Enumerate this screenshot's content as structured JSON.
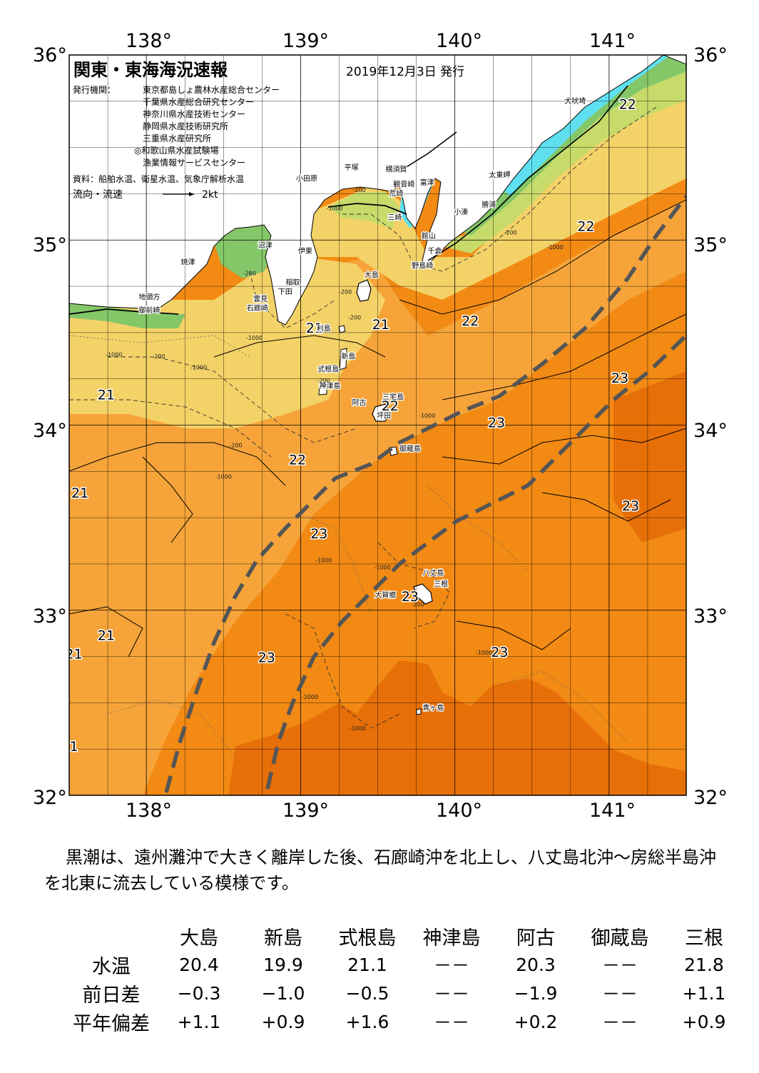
{
  "map": {
    "title": "関東・東海海況速報",
    "issue_date": "2019年12月3日 発行",
    "issuers_label": "発行機関：",
    "issuers": [
      "東京都島しょ農林水産総合センター",
      "千葉県水産総合研究センター",
      "神奈川県水産技術センター",
      "静岡県水産技術研究所",
      "三重県水産研究所",
      "◎和歌山県水産試験場",
      "漁業情報サービスセンター"
    ],
    "sources": "資料：船舶水温、衛星水温、気象庁解析水温",
    "flow_legend_label": "流向・流速",
    "flow_legend_value": "2kt",
    "lon_labels": [
      "138°",
      "139°",
      "140°",
      "141°"
    ],
    "lat_labels": [
      "36°",
      "35°",
      "34°",
      "33°",
      "32°"
    ],
    "temperature_labels": [
      {
        "text": "22",
        "lon": 141.12,
        "lat": 35.73
      },
      {
        "text": "22",
        "lon": 140.85,
        "lat": 35.07
      },
      {
        "text": "21",
        "lon": 139.09,
        "lat": 34.52
      },
      {
        "text": "21",
        "lon": 139.52,
        "lat": 34.54
      },
      {
        "text": "22",
        "lon": 140.1,
        "lat": 34.56
      },
      {
        "text": "21",
        "lon": 137.74,
        "lat": 34.16
      },
      {
        "text": "22",
        "lon": 139.58,
        "lat": 34.1
      },
      {
        "text": "23",
        "lon": 140.27,
        "lat": 34.01
      },
      {
        "text": "23",
        "lon": 141.07,
        "lat": 34.25
      },
      {
        "text": "22",
        "lon": 138.98,
        "lat": 33.81
      },
      {
        "text": "21",
        "lon": 137.57,
        "lat": 33.63
      },
      {
        "text": "23",
        "lon": 141.14,
        "lat": 33.56
      },
      {
        "text": "23",
        "lon": 139.12,
        "lat": 33.41
      },
      {
        "text": "23",
        "lon": 139.71,
        "lat": 33.07
      },
      {
        "text": "21",
        "lon": 137.74,
        "lat": 32.86
      },
      {
        "text": "21",
        "lon": 137.53,
        "lat": 32.76
      },
      {
        "text": "23",
        "lon": 140.29,
        "lat": 32.77
      },
      {
        "text": "23",
        "lon": 138.78,
        "lat": 32.74
      },
      {
        "text": "1",
        "lon": 137.53,
        "lat": 32.26
      }
    ],
    "place_names": [
      {
        "text": "犬吠埼",
        "lon": 140.78,
        "lat": 35.75
      },
      {
        "text": "太東岬",
        "lon": 140.29,
        "lat": 35.35
      },
      {
        "text": "勝浦",
        "lon": 140.22,
        "lat": 35.19
      },
      {
        "text": "小湊",
        "lon": 140.04,
        "lat": 35.15
      },
      {
        "text": "富津",
        "lon": 139.82,
        "lat": 35.31
      },
      {
        "text": "横須賀",
        "lon": 139.62,
        "lat": 35.38
      },
      {
        "text": "平塚",
        "lon": 139.33,
        "lat": 35.39
      },
      {
        "text": "小田原",
        "lon": 139.04,
        "lat": 35.33
      },
      {
        "text": "観音崎",
        "lon": 139.67,
        "lat": 35.3
      },
      {
        "text": "荒崎",
        "lon": 139.62,
        "lat": 35.25
      },
      {
        "text": "三崎",
        "lon": 139.61,
        "lat": 35.12
      },
      {
        "text": "館山",
        "lon": 139.83,
        "lat": 35.02
      },
      {
        "text": "千倉",
        "lon": 139.87,
        "lat": 34.94
      },
      {
        "text": "野島崎",
        "lon": 139.79,
        "lat": 34.86
      },
      {
        "text": "沼津",
        "lon": 138.77,
        "lat": 34.97
      },
      {
        "text": "伊東",
        "lon": 139.03,
        "lat": 34.94
      },
      {
        "text": "焼津",
        "lon": 138.27,
        "lat": 34.88
      },
      {
        "text": "大島",
        "lon": 139.46,
        "lat": 34.81
      },
      {
        "text": "稲取",
        "lon": 138.95,
        "lat": 34.77
      },
      {
        "text": "下田",
        "lon": 138.9,
        "lat": 34.72
      },
      {
        "text": "雲見",
        "lon": 138.74,
        "lat": 34.68
      },
      {
        "text": "石廊崎",
        "lon": 138.72,
        "lat": 34.63
      },
      {
        "text": "地頭方",
        "lon": 138.02,
        "lat": 34.69
      },
      {
        "text": "御前崎",
        "lon": 138.02,
        "lat": 34.62
      },
      {
        "text": "利島",
        "lon": 139.15,
        "lat": 34.52
      },
      {
        "text": "新島",
        "lon": 139.31,
        "lat": 34.37
      },
      {
        "text": "式根島",
        "lon": 139.18,
        "lat": 34.3
      },
      {
        "text": "神津島",
        "lon": 139.19,
        "lat": 34.21
      },
      {
        "text": "三宅島",
        "lon": 139.6,
        "lat": 34.15
      },
      {
        "text": "阿古",
        "lon": 139.38,
        "lat": 34.12
      },
      {
        "text": "坪田",
        "lon": 139.54,
        "lat": 34.05
      },
      {
        "text": "御蔵島",
        "lon": 139.71,
        "lat": 33.87
      },
      {
        "text": "八丈島",
        "lon": 139.86,
        "lat": 33.2
      },
      {
        "text": "三根",
        "lon": 139.91,
        "lat": 33.14
      },
      {
        "text": "大賀郷",
        "lon": 139.55,
        "lat": 33.08
      },
      {
        "text": "青ヶ島",
        "lon": 139.86,
        "lat": 32.47
      }
    ],
    "depth_labels": [
      {
        "text": "-200",
        "lon": 139.38,
        "lat": 35.27
      },
      {
        "text": "-1000",
        "lon": 139.22,
        "lat": 35.17
      },
      {
        "text": "-200",
        "lon": 140.36,
        "lat": 35.04
      },
      {
        "text": "-1000",
        "lon": 140.65,
        "lat": 34.96
      },
      {
        "text": "-200",
        "lon": 138.67,
        "lat": 34.82
      },
      {
        "text": "-200",
        "lon": 139.29,
        "lat": 34.72
      },
      {
        "text": "-200",
        "lon": 139.35,
        "lat": 34.58
      },
      {
        "text": "-1000",
        "lon": 138.7,
        "lat": 34.47
      },
      {
        "text": "-1000",
        "lon": 137.79,
        "lat": 34.38
      },
      {
        "text": "-200",
        "lon": 138.08,
        "lat": 34.37
      },
      {
        "text": "-1000",
        "lon": 138.34,
        "lat": 34.31
      },
      {
        "text": "-200",
        "lon": 139.15,
        "lat": 34.24
      },
      {
        "text": "-1000",
        "lon": 139.82,
        "lat": 34.05
      },
      {
        "text": "-200",
        "lon": 138.58,
        "lat": 33.89
      },
      {
        "text": "-1000",
        "lon": 138.5,
        "lat": 33.72
      },
      {
        "text": "-1000",
        "lon": 139.15,
        "lat": 33.27
      },
      {
        "text": "-1000",
        "lon": 139.53,
        "lat": 33.23
      },
      {
        "text": "-200",
        "lon": 139.76,
        "lat": 33.03
      },
      {
        "text": "-1000",
        "lon": 140.19,
        "lat": 32.77
      },
      {
        "text": "-1000",
        "lon": 139.06,
        "lat": 32.53
      },
      {
        "text": "-1000",
        "lon": 139.37,
        "lat": 32.36
      }
    ]
  },
  "description": "黒潮は、遠州灘沖で大きく離岸した後、石廊崎沖を北上し、八丈島北沖～房総半島沖を北東に流去している模様です。",
  "table": {
    "columns": [
      "大島",
      "新島",
      "式根島",
      "神津島",
      "阿古",
      "御蔵島",
      "三根"
    ],
    "rows": [
      {
        "label": "水温",
        "values": [
          "20.4",
          "19.9",
          "21.1",
          "－－",
          "20.3",
          "－－",
          "21.8"
        ]
      },
      {
        "label": "前日差",
        "values": [
          "−0.3",
          "−1.0",
          "−0.5",
          "－－",
          "−1.9",
          "－－",
          "+1.1"
        ]
      },
      {
        "label": "平年偏差",
        "values": [
          "+1.1",
          "+0.9",
          "+1.6",
          "－－",
          "+0.2",
          "－－",
          "+0.9"
        ]
      }
    ]
  },
  "colors": {
    "warm_orange": "#f28a14",
    "deep_orange": "#e76f08",
    "light_orange": "#f6a43a",
    "pale_yellow": "#f3d267",
    "yellow_green": "#c7db6a",
    "green": "#84c769",
    "cyan": "#5fe0f0",
    "blue": "#1f82e3",
    "kuroshio_axis": "#555555"
  }
}
